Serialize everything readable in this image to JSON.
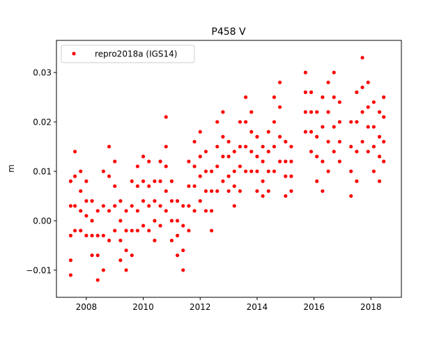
{
  "chart_data": {
    "type": "scatter",
    "title": "P458 V",
    "xlabel": "",
    "ylabel": "m",
    "xlim": [
      2006.95,
      2019.07
    ],
    "ylim": [
      -0.0155,
      0.0365
    ],
    "xticks": [
      2008,
      2010,
      2012,
      2014,
      2016,
      2018
    ],
    "xtick_labels": [
      "2008",
      "2010",
      "2012",
      "2014",
      "2016",
      "2018"
    ],
    "yticks": [
      -0.01,
      0.0,
      0.01,
      0.02,
      0.03
    ],
    "ytick_labels": [
      "−0.01",
      "0.00",
      "0.01",
      "0.02",
      "0.03"
    ],
    "grid": false,
    "legend": {
      "placement": "top-left",
      "entries": [
        "repro2018a (IGS14)"
      ]
    },
    "series": [
      {
        "name": "repro2018a (IGS14)",
        "color": "#ff0000",
        "marker": "circle",
        "points_by_epoch": [
          [
            2007.45,
            [
              -0.011,
              -0.008,
              -0.003,
              0.003,
              0.008
            ]
          ],
          [
            2007.6,
            [
              -0.002,
              0.003,
              0.009,
              0.014
            ]
          ],
          [
            2007.8,
            [
              -0.002,
              0.002,
              0.006,
              0.01
            ]
          ],
          [
            2008.0,
            [
              -0.003,
              0.001,
              0.004,
              0.008
            ]
          ],
          [
            2008.2,
            [
              -0.007,
              -0.003,
              0.0,
              0.004
            ]
          ],
          [
            2008.4,
            [
              -0.012,
              -0.007,
              -0.003,
              0.002
            ]
          ],
          [
            2008.6,
            [
              -0.01,
              -0.003,
              0.003,
              0.01
            ]
          ],
          [
            2008.8,
            [
              -0.004,
              0.002,
              0.009,
              0.015
            ]
          ],
          [
            2009.0,
            [
              -0.002,
              0.003,
              0.007,
              0.012
            ]
          ],
          [
            2009.2,
            [
              -0.008,
              -0.004,
              0.0,
              0.004
            ]
          ],
          [
            2009.4,
            [
              -0.01,
              -0.006,
              -0.002,
              0.002
            ]
          ],
          [
            2009.6,
            [
              -0.007,
              -0.002,
              0.003,
              0.008
            ]
          ],
          [
            2009.8,
            [
              -0.002,
              0.002,
              0.007,
              0.011
            ]
          ],
          [
            2010.0,
            [
              -0.001,
              0.004,
              0.008,
              0.013
            ]
          ],
          [
            2010.2,
            [
              -0.002,
              0.003,
              0.007,
              0.012
            ]
          ],
          [
            2010.4,
            [
              -0.004,
              0.0,
              0.004,
              0.008
            ]
          ],
          [
            2010.6,
            [
              -0.001,
              0.003,
              0.008,
              0.012
            ]
          ],
          [
            2010.8,
            [
              0.002,
              0.006,
              0.011,
              0.015,
              0.021
            ]
          ],
          [
            2011.0,
            [
              -0.004,
              0.0,
              0.004,
              0.008
            ]
          ],
          [
            2011.2,
            [
              -0.007,
              -0.003,
              0.0,
              0.004
            ]
          ],
          [
            2011.4,
            [
              -0.01,
              -0.006,
              -0.001,
              0.003
            ]
          ],
          [
            2011.6,
            [
              -0.002,
              0.003,
              0.007,
              0.012
            ]
          ],
          [
            2011.8,
            [
              0.002,
              0.007,
              0.011,
              0.016
            ]
          ],
          [
            2012.0,
            [
              0.004,
              0.009,
              0.013,
              0.018
            ]
          ],
          [
            2012.2,
            [
              0.002,
              0.006,
              0.01,
              0.014
            ]
          ],
          [
            2012.4,
            [
              -0.002,
              0.002,
              0.006,
              0.01
            ]
          ],
          [
            2012.6,
            [
              0.006,
              0.011,
              0.015,
              0.02
            ]
          ],
          [
            2012.8,
            [
              0.008,
              0.013,
              0.017,
              0.022
            ]
          ],
          [
            2013.0,
            [
              0.006,
              0.009,
              0.013,
              0.016
            ]
          ],
          [
            2013.2,
            [
              0.003,
              0.007,
              0.01,
              0.014
            ]
          ],
          [
            2013.4,
            [
              0.006,
              0.011,
              0.015,
              0.02
            ]
          ],
          [
            2013.6,
            [
              0.01,
              0.015,
              0.02,
              0.025
            ]
          ],
          [
            2013.8,
            [
              0.01,
              0.014,
              0.018,
              0.022
            ]
          ],
          [
            2014.0,
            [
              0.006,
              0.01,
              0.013,
              0.017
            ]
          ],
          [
            2014.2,
            [
              0.005,
              0.008,
              0.012,
              0.015
            ]
          ],
          [
            2014.4,
            [
              0.006,
              0.01,
              0.014,
              0.018
            ]
          ],
          [
            2014.6,
            [
              0.01,
              0.015,
              0.02,
              0.025
            ]
          ],
          [
            2014.8,
            [
              0.012,
              0.017,
              0.023,
              0.028
            ]
          ],
          [
            2015.0,
            [
              0.005,
              0.009,
              0.012,
              0.016
            ]
          ],
          [
            2015.2,
            [
              0.006,
              0.009,
              0.012,
              0.015
            ]
          ],
          [
            2015.7,
            [
              0.018,
              0.022,
              0.026,
              0.03
            ]
          ],
          [
            2015.9,
            [
              0.014,
              0.018,
              0.022,
              0.026
            ]
          ],
          [
            2016.1,
            [
              0.008,
              0.013,
              0.017,
              0.022
            ]
          ],
          [
            2016.3,
            [
              0.006,
              0.012,
              0.019,
              0.025
            ]
          ],
          [
            2016.5,
            [
              0.01,
              0.016,
              0.022,
              0.028
            ]
          ],
          [
            2016.7,
            [
              0.014,
              0.019,
              0.025,
              0.03
            ]
          ],
          [
            2016.9,
            [
              0.012,
              0.016,
              0.02,
              0.024
            ]
          ],
          [
            2017.3,
            [
              0.005,
              0.01,
              0.015,
              0.02
            ]
          ],
          [
            2017.5,
            [
              0.008,
              0.014,
              0.02,
              0.026
            ]
          ],
          [
            2017.7,
            [
              0.016,
              0.022,
              0.027,
              0.033
            ]
          ],
          [
            2017.9,
            [
              0.014,
              0.019,
              0.023,
              0.028
            ]
          ],
          [
            2018.1,
            [
              0.01,
              0.015,
              0.019,
              0.024
            ]
          ],
          [
            2018.3,
            [
              0.008,
              0.013,
              0.017,
              0.022
            ]
          ],
          [
            2018.45,
            [
              0.012,
              0.016,
              0.021,
              0.025
            ]
          ]
        ]
      }
    ]
  }
}
